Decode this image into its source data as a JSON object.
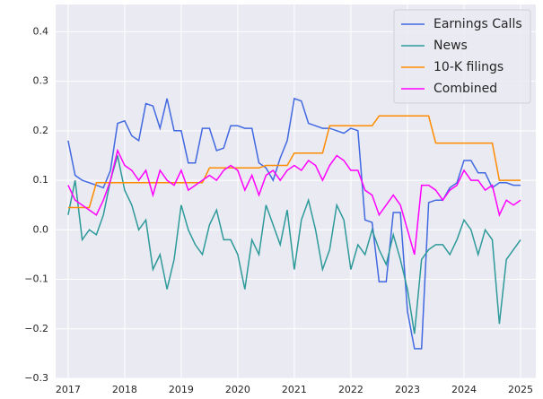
{
  "chart_data": {
    "type": "line",
    "x": [
      2017,
      2017.125,
      2017.25,
      2017.375,
      2017.5,
      2017.625,
      2017.75,
      2017.875,
      2018,
      2018.125,
      2018.25,
      2018.375,
      2018.5,
      2018.625,
      2018.75,
      2018.875,
      2019,
      2019.125,
      2019.25,
      2019.375,
      2019.5,
      2019.625,
      2019.75,
      2019.875,
      2020,
      2020.125,
      2020.25,
      2020.375,
      2020.5,
      2020.625,
      2020.75,
      2020.875,
      2021,
      2021.125,
      2021.25,
      2021.375,
      2021.5,
      2021.625,
      2021.75,
      2021.875,
      2022,
      2022.125,
      2022.25,
      2022.375,
      2022.5,
      2022.625,
      2022.75,
      2022.875,
      2023,
      2023.125,
      2023.25,
      2023.375,
      2023.5,
      2023.625,
      2023.75,
      2023.875,
      2024,
      2024.125,
      2024.25,
      2024.375,
      2024.5,
      2024.625,
      2024.75,
      2024.875,
      2025
    ],
    "series": [
      {
        "name": "Earnings Calls",
        "color": "#4169e1",
        "values": [
          0.18,
          0.11,
          0.1,
          0.095,
          0.09,
          0.085,
          0.12,
          0.215,
          0.22,
          0.19,
          0.18,
          0.255,
          0.25,
          0.205,
          0.265,
          0.2,
          0.2,
          0.135,
          0.135,
          0.205,
          0.205,
          0.16,
          0.165,
          0.21,
          0.21,
          0.205,
          0.205,
          0.135,
          0.125,
          0.1,
          0.145,
          0.18,
          0.265,
          0.26,
          0.215,
          0.21,
          0.205,
          0.205,
          0.2,
          0.195,
          0.205,
          0.2,
          0.02,
          0.015,
          -0.105,
          -0.105,
          0.035,
          0.035,
          -0.165,
          -0.24,
          -0.24,
          0.055,
          0.06,
          0.06,
          0.085,
          0.095,
          0.14,
          0.14,
          0.115,
          0.115,
          0.085,
          0.095,
          0.095,
          0.09,
          0.09
        ]
      },
      {
        "name": "News",
        "color": "#2e9a9a",
        "values": [
          0.03,
          0.1,
          -0.02,
          0.0,
          -0.01,
          0.03,
          0.1,
          0.15,
          0.08,
          0.05,
          0.0,
          0.02,
          -0.08,
          -0.05,
          -0.12,
          -0.06,
          0.05,
          0.0,
          -0.03,
          -0.05,
          0.01,
          0.04,
          -0.02,
          -0.02,
          -0.05,
          -0.12,
          -0.02,
          -0.05,
          0.05,
          0.01,
          -0.03,
          0.04,
          -0.08,
          0.02,
          0.06,
          0.0,
          -0.08,
          -0.04,
          0.05,
          0.02,
          -0.08,
          -0.03,
          -0.05,
          0.0,
          -0.04,
          -0.07,
          -0.01,
          -0.06,
          -0.12,
          -0.21,
          -0.06,
          -0.04,
          -0.03,
          -0.03,
          -0.05,
          -0.02,
          0.02,
          0.0,
          -0.05,
          0.0,
          -0.02,
          -0.19,
          -0.06,
          -0.04,
          -0.02
        ]
      },
      {
        "name": "10-K filings",
        "color": "#ff8c00",
        "values": [
          0.045,
          0.045,
          0.045,
          0.045,
          0.095,
          0.095,
          0.095,
          0.095,
          0.095,
          0.095,
          0.095,
          0.095,
          0.095,
          0.095,
          0.095,
          0.095,
          0.095,
          0.095,
          0.095,
          0.095,
          0.125,
          0.125,
          0.125,
          0.125,
          0.125,
          0.125,
          0.125,
          0.125,
          0.13,
          0.13,
          0.13,
          0.13,
          0.155,
          0.155,
          0.155,
          0.155,
          0.155,
          0.21,
          0.21,
          0.21,
          0.21,
          0.21,
          0.21,
          0.21,
          0.23,
          0.23,
          0.23,
          0.23,
          0.23,
          0.23,
          0.23,
          0.23,
          0.175,
          0.175,
          0.175,
          0.175,
          0.175,
          0.175,
          0.175,
          0.175,
          0.175,
          0.1,
          0.1,
          0.1,
          0.1
        ]
      },
      {
        "name": "Combined",
        "color": "#ff00ff",
        "values": [
          0.09,
          0.06,
          0.05,
          0.04,
          0.03,
          0.06,
          0.1,
          0.16,
          0.13,
          0.12,
          0.1,
          0.12,
          0.07,
          0.12,
          0.1,
          0.09,
          0.12,
          0.08,
          0.09,
          0.1,
          0.11,
          0.1,
          0.12,
          0.13,
          0.12,
          0.08,
          0.11,
          0.07,
          0.11,
          0.12,
          0.1,
          0.12,
          0.13,
          0.12,
          0.14,
          0.13,
          0.1,
          0.13,
          0.15,
          0.14,
          0.12,
          0.12,
          0.08,
          0.07,
          0.03,
          0.05,
          0.07,
          0.05,
          0.0,
          -0.05,
          0.09,
          0.09,
          0.08,
          0.06,
          0.08,
          0.09,
          0.12,
          0.1,
          0.1,
          0.08,
          0.09,
          0.03,
          0.06,
          0.05,
          0.06
        ]
      }
    ],
    "xlim": [
      2016.78,
      2025.27
    ],
    "xticks": [
      2017,
      2018,
      2019,
      2020,
      2021,
      2022,
      2023,
      2024,
      2025
    ],
    "ylim": [
      -0.3,
      0.455
    ],
    "yticks": [
      {
        "value": -0.3,
        "label": "−0.3"
      },
      {
        "value": -0.2,
        "label": "−0.2"
      },
      {
        "value": -0.1,
        "label": "−0.1"
      },
      {
        "value": 0,
        "label": "0.0"
      },
      0.1,
      0.2,
      0.3,
      0.4
    ],
    "grid": true,
    "legend": "upper-right"
  }
}
